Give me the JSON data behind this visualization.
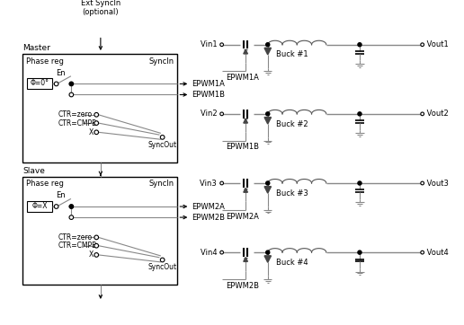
{
  "fig_width": 5.16,
  "fig_height": 3.62,
  "dpi": 100,
  "background": "#ffffff",
  "lc": "#888888",
  "tc": "#000000",
  "master_label": "Master",
  "slave_label": "Slave",
  "ext_sync_text": "Ext SyncIn\n(optional)",
  "phi0_text": "Φ=0°",
  "phiX_text": "Φ=X",
  "phase_reg_text": "Phase reg",
  "syncin_text": "SyncIn",
  "syncout_text": "SyncOut",
  "en_text": "En",
  "ctr_zero_text": "CTR=zero",
  "ctr_cmpb_text": "CTR=CMPB",
  "x_text": "X",
  "epwm1a": "EPWM1A",
  "epwm1b": "EPWM1B",
  "epwm2a": "EPWM2A",
  "epwm2b": "EPWM2B",
  "buck_labels": [
    "Buck #1",
    "Buck #2",
    "Buck #3",
    "Buck #4"
  ],
  "vin_labels": [
    "Vin1",
    "Vin2",
    "Vin3",
    "Vin4"
  ],
  "vout_labels": [
    "Vout1",
    "Vout2",
    "Vout3",
    "Vout4"
  ]
}
